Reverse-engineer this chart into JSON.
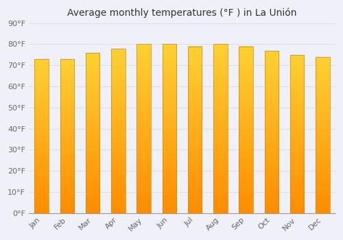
{
  "title": "Average monthly temperatures (°F ) in La Unión",
  "months": [
    "Jan",
    "Feb",
    "Mar",
    "Apr",
    "May",
    "Jun",
    "Jul",
    "Aug",
    "Sep",
    "Oct",
    "Nov",
    "Dec"
  ],
  "values": [
    73,
    73,
    76,
    78,
    80,
    80,
    79,
    80,
    79,
    77,
    75,
    74
  ],
  "bar_color": "#FFA500",
  "bar_color_light": "#FFD050",
  "background_color": "#F0F0F8",
  "ylim": [
    0,
    90
  ],
  "yticks": [
    0,
    10,
    20,
    30,
    40,
    50,
    60,
    70,
    80,
    90
  ],
  "ytick_labels": [
    "0°F",
    "10°F",
    "20°F",
    "30°F",
    "40°F",
    "50°F",
    "60°F",
    "70°F",
    "80°F",
    "90°F"
  ],
  "grid_color": "#DDDDEE",
  "title_fontsize": 10,
  "tick_fontsize": 8,
  "bar_width": 0.55
}
